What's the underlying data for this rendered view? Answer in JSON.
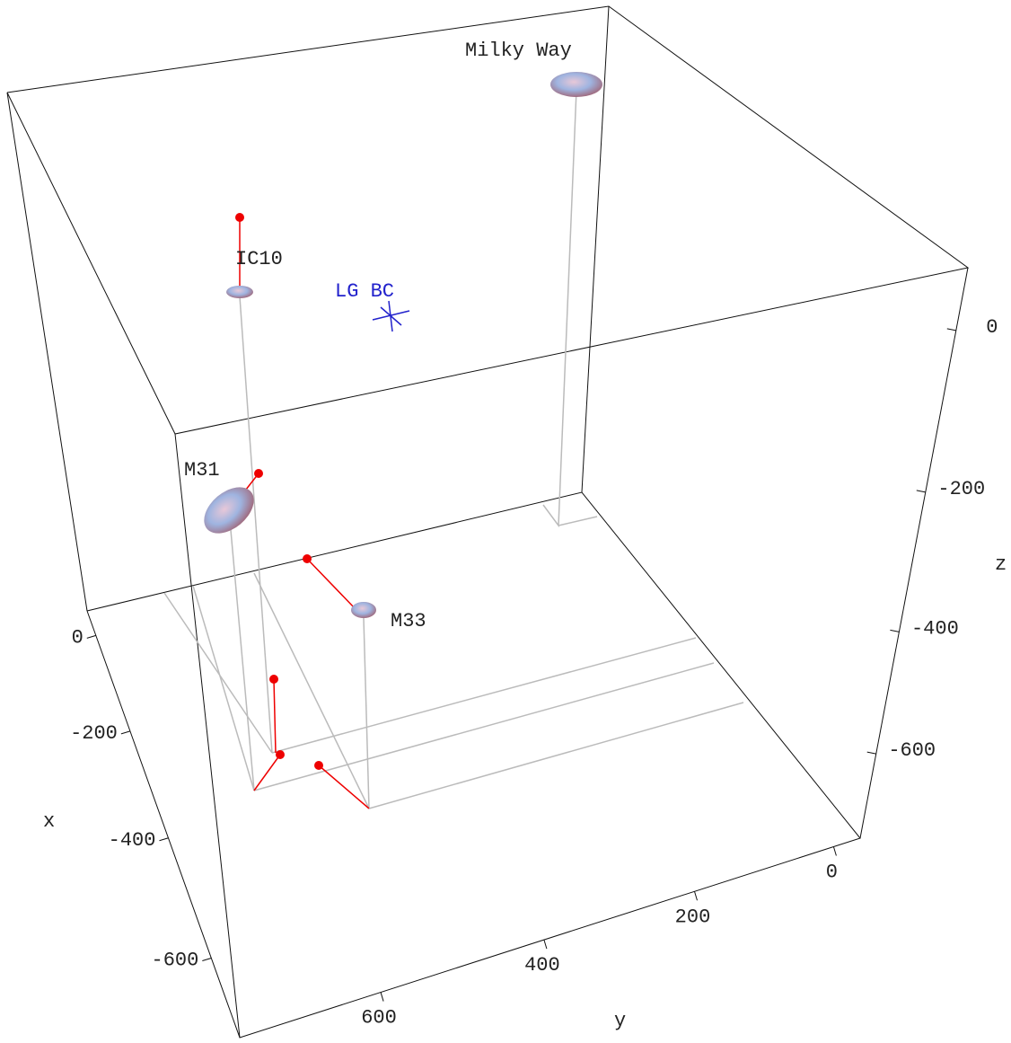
{
  "chart_data": {
    "type": "scatter3d",
    "xlabel": "x",
    "ylabel": "y",
    "zlabel": "z",
    "xlim": [
      55,
      -720
    ],
    "ylim": [
      760,
      -40
    ],
    "zlim": [
      70,
      -755
    ],
    "xticks": [
      0,
      -200,
      -400,
      -600
    ],
    "yticks": [
      600,
      400,
      200,
      0
    ],
    "zticks": [
      0,
      -200,
      -400,
      -600
    ],
    "point_labels": [
      "Milky Way",
      "IC10",
      "M31",
      "M33"
    ],
    "center_label": "LG BC"
  }
}
